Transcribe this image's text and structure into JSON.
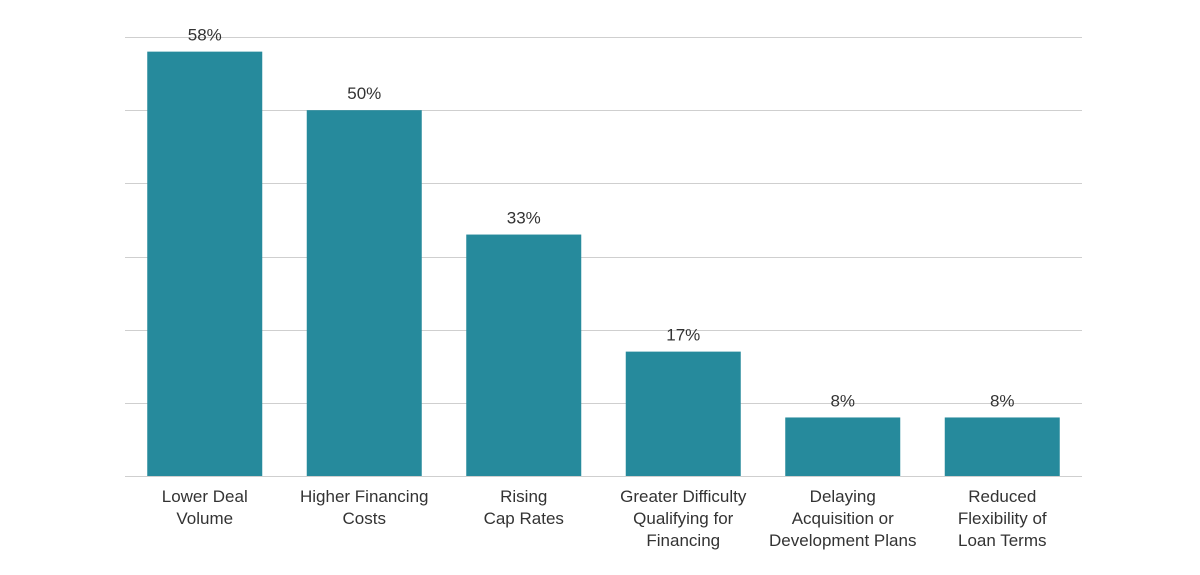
{
  "chart_data": {
    "type": "bar",
    "categories": [
      [
        "Lower Deal",
        "Volume"
      ],
      [
        "Higher Financing",
        "Costs"
      ],
      [
        "Rising",
        "Cap Rates"
      ],
      [
        "Greater Difficulty",
        "Qualifying for",
        "Financing"
      ],
      [
        "Delaying",
        "Acquisition or",
        "Development Plans"
      ],
      [
        "Reduced",
        "Flexibility of",
        "Loan Terms"
      ]
    ],
    "values": [
      58,
      50,
      33,
      17,
      8,
      8
    ],
    "value_labels": [
      "58%",
      "50%",
      "33%",
      "17%",
      "8%",
      "8%"
    ],
    "ylim": [
      0,
      60
    ],
    "gridline_step": 10,
    "grid": true,
    "title": "",
    "xlabel": "",
    "ylabel": "",
    "bar_color": "#268a9c",
    "grid_color": "#cfcfcf"
  }
}
